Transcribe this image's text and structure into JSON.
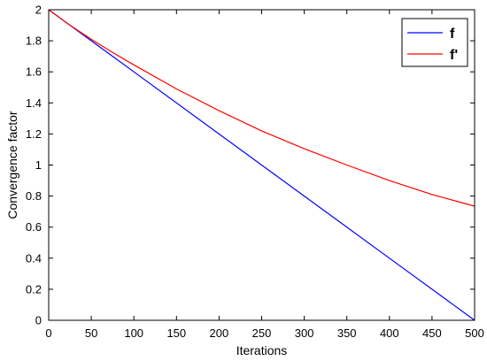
{
  "chart_data": {
    "type": "line",
    "title": "",
    "xlabel": "Iterations",
    "ylabel": "Convergence factor",
    "xlim": [
      0,
      500
    ],
    "ylim": [
      0,
      2
    ],
    "xticks": [
      0,
      50,
      100,
      150,
      200,
      250,
      300,
      350,
      400,
      450,
      500
    ],
    "yticks": [
      0,
      0.2,
      0.4,
      0.6,
      0.8,
      1,
      1.2,
      1.4,
      1.6,
      1.8,
      2
    ],
    "grid": false,
    "legend_position": "top-right",
    "series": [
      {
        "name": "f",
        "color": "#0000ff",
        "x": [
          0,
          100,
          200,
          300,
          400,
          500
        ],
        "y": [
          2,
          1.6,
          1.2,
          0.8,
          0.4,
          0
        ]
      },
      {
        "name": "f'",
        "color": "#ff0000",
        "x": [
          0,
          25,
          50,
          75,
          100,
          150,
          200,
          250,
          300,
          350,
          400,
          450,
          500
        ],
        "y": [
          2,
          1.9,
          1.81,
          1.725,
          1.645,
          1.49,
          1.35,
          1.22,
          1.105,
          1.0,
          0.9,
          0.81,
          0.735
        ]
      }
    ]
  }
}
